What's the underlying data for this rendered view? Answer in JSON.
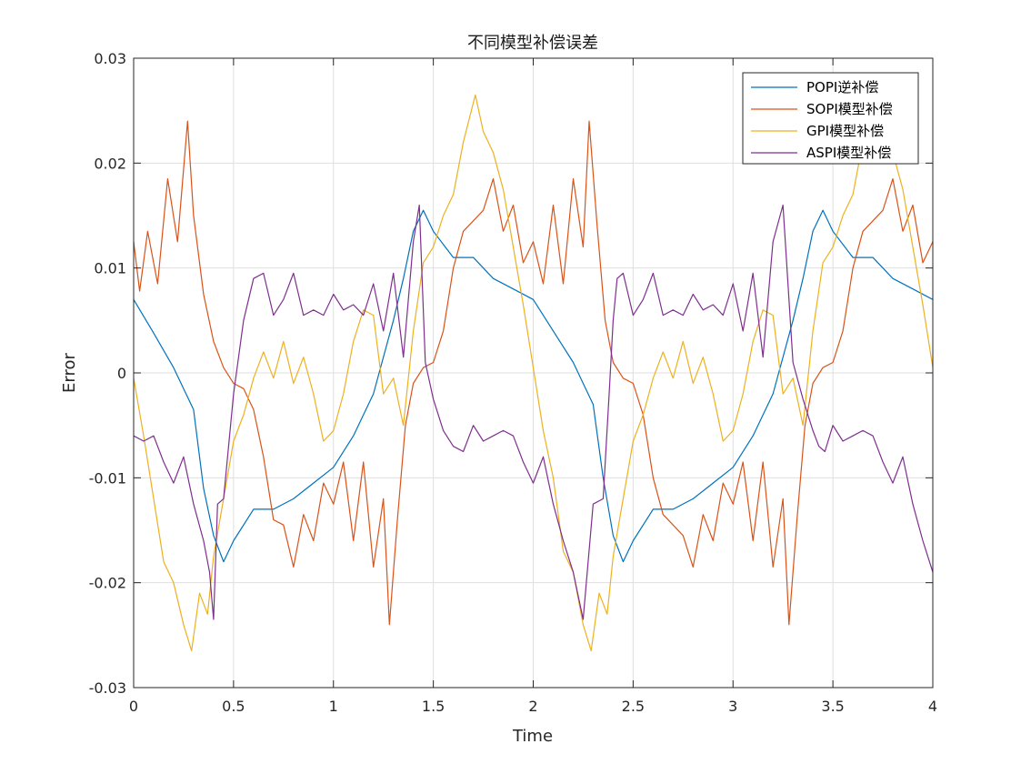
{
  "chart_data": {
    "type": "line",
    "title": "不同模型补偿误差",
    "xlabel": "Time",
    "ylabel": "Error",
    "xlim": [
      0,
      4
    ],
    "ylim": [
      -0.03,
      0.03
    ],
    "xticks": [
      0,
      0.5,
      1,
      1.5,
      2,
      2.5,
      3,
      3.5,
      4
    ],
    "xtick_labels": [
      "0",
      "0.5",
      "1",
      "1.5",
      "2",
      "2.5",
      "3",
      "3.5",
      "4"
    ],
    "yticks": [
      -0.03,
      -0.02,
      -0.01,
      0,
      0.01,
      0.02,
      0.03
    ],
    "ytick_labels": [
      "-0.03",
      "-0.02",
      "-0.01",
      "0",
      "0.01",
      "0.02",
      "0.03"
    ],
    "grid": true,
    "legend_position": "top-right",
    "series": [
      {
        "name": "POPI逆补偿",
        "color": "#0072BD",
        "x": [
          0,
          0.1,
          0.2,
          0.3,
          0.35,
          0.4,
          0.45,
          0.5,
          0.6,
          0.7,
          0.8,
          0.9,
          1.0,
          1.1,
          1.2,
          1.3,
          1.35,
          1.4,
          1.45,
          1.5,
          1.6,
          1.7,
          1.8,
          1.9,
          2.0,
          2.1,
          2.2,
          2.3,
          2.35,
          2.4,
          2.45,
          2.5,
          2.6,
          2.7,
          2.8,
          2.9,
          3.0,
          3.1,
          3.2,
          3.3,
          3.35,
          3.4,
          3.45,
          3.5,
          3.6,
          3.7,
          3.8,
          3.9,
          4.0
        ],
        "y": [
          0.007,
          0.0038,
          0.0005,
          -0.0035,
          -0.011,
          -0.0155,
          -0.018,
          -0.016,
          -0.013,
          -0.013,
          -0.012,
          -0.0105,
          -0.009,
          -0.006,
          -0.002,
          0.005,
          0.009,
          0.0135,
          0.0155,
          0.0135,
          0.011,
          0.011,
          0.009,
          0.008,
          0.007,
          0.004,
          0.001,
          -0.003,
          -0.01,
          -0.0155,
          -0.018,
          -0.016,
          -0.013,
          -0.013,
          -0.012,
          -0.0105,
          -0.009,
          -0.006,
          -0.002,
          0.005,
          0.009,
          0.0135,
          0.0155,
          0.0135,
          0.011,
          0.011,
          0.009,
          0.008,
          0.007
        ]
      },
      {
        "name": "SOPI模型补偿",
        "color": "#D95319",
        "x": [
          0,
          0.03,
          0.07,
          0.12,
          0.17,
          0.22,
          0.27,
          0.3,
          0.35,
          0.4,
          0.45,
          0.5,
          0.55,
          0.6,
          0.65,
          0.7,
          0.75,
          0.8,
          0.85,
          0.9,
          0.95,
          1.0,
          1.05,
          1.1,
          1.15,
          1.2,
          1.25,
          1.28,
          1.32,
          1.36,
          1.4,
          1.45,
          1.5,
          1.55,
          1.6,
          1.65,
          1.7,
          1.75,
          1.8,
          1.85,
          1.9,
          1.95,
          2.0,
          2.05,
          2.1,
          2.15,
          2.2,
          2.25,
          2.28,
          2.32,
          2.36,
          2.4,
          2.45,
          2.5,
          2.55,
          2.6,
          2.65,
          2.7,
          2.75,
          2.8,
          2.85,
          2.9,
          2.95,
          3.0,
          3.05,
          3.1,
          3.15,
          3.2,
          3.25,
          3.28,
          3.32,
          3.36,
          3.4,
          3.45,
          3.5,
          3.55,
          3.6,
          3.65,
          3.7,
          3.75,
          3.8,
          3.85,
          3.9,
          3.95,
          4.0
        ],
        "y": [
          0.0125,
          0.0078,
          0.0135,
          0.0085,
          0.0185,
          0.0125,
          0.024,
          0.015,
          0.0075,
          0.003,
          0.0005,
          -0.001,
          -0.0015,
          -0.0035,
          -0.008,
          -0.014,
          -0.0145,
          -0.0185,
          -0.0135,
          -0.016,
          -0.0105,
          -0.0125,
          -0.0085,
          -0.016,
          -0.0085,
          -0.0185,
          -0.012,
          -0.024,
          -0.014,
          -0.005,
          -0.001,
          0.0005,
          0.001,
          0.004,
          0.01,
          0.0135,
          0.0145,
          0.0155,
          0.0185,
          0.0135,
          0.016,
          0.0105,
          0.0125,
          0.0085,
          0.016,
          0.0085,
          0.0185,
          0.012,
          0.024,
          0.014,
          0.005,
          0.001,
          -0.0005,
          -0.001,
          -0.004,
          -0.01,
          -0.0135,
          -0.0145,
          -0.0155,
          -0.0185,
          -0.0135,
          -0.016,
          -0.0105,
          -0.0125,
          -0.0085,
          -0.016,
          -0.0085,
          -0.0185,
          -0.012,
          -0.024,
          -0.014,
          -0.005,
          -0.001,
          0.0005,
          0.001,
          0.004,
          0.01,
          0.0135,
          0.0145,
          0.0155,
          0.0185,
          0.0135,
          0.016,
          0.0105,
          0.0125
        ]
      },
      {
        "name": "GPI模型补偿",
        "color": "#EDB120",
        "x": [
          0,
          0.05,
          0.1,
          0.15,
          0.2,
          0.25,
          0.29,
          0.33,
          0.37,
          0.4,
          0.45,
          0.5,
          0.55,
          0.6,
          0.65,
          0.7,
          0.75,
          0.8,
          0.85,
          0.9,
          0.95,
          1.0,
          1.05,
          1.1,
          1.15,
          1.2,
          1.25,
          1.3,
          1.35,
          1.4,
          1.45,
          1.5,
          1.55,
          1.6,
          1.65,
          1.71,
          1.75,
          1.8,
          1.85,
          1.9,
          1.95,
          2.0,
          2.05,
          2.1,
          2.15,
          2.2,
          2.25,
          2.29,
          2.33,
          2.37,
          2.4,
          2.45,
          2.5,
          2.55,
          2.6,
          2.65,
          2.7,
          2.75,
          2.8,
          2.85,
          2.9,
          2.95,
          3.0,
          3.05,
          3.1,
          3.15,
          3.2,
          3.25,
          3.3,
          3.35,
          3.4,
          3.45,
          3.5,
          3.55,
          3.6,
          3.65,
          3.7,
          3.75,
          3.8,
          3.85,
          3.9,
          3.95,
          4.0
        ],
        "y": [
          -0.0005,
          -0.006,
          -0.012,
          -0.018,
          -0.02,
          -0.024,
          -0.0265,
          -0.021,
          -0.023,
          -0.0175,
          -0.012,
          -0.0065,
          -0.004,
          -0.0005,
          0.002,
          -0.0005,
          0.003,
          -0.001,
          0.0015,
          -0.002,
          -0.0065,
          -0.0055,
          -0.002,
          0.003,
          0.006,
          0.0055,
          -0.002,
          -0.0005,
          -0.005,
          0.004,
          0.0105,
          0.012,
          0.015,
          0.017,
          0.022,
          0.0265,
          0.023,
          0.021,
          0.0175,
          0.012,
          0.0065,
          0.0005,
          -0.0055,
          -0.01,
          -0.017,
          -0.019,
          -0.024,
          -0.0265,
          -0.021,
          -0.023,
          -0.0175,
          -0.012,
          -0.0065,
          -0.004,
          -0.0005,
          0.002,
          -0.0005,
          0.003,
          -0.001,
          0.0015,
          -0.002,
          -0.0065,
          -0.0055,
          -0.002,
          0.003,
          0.006,
          0.0055,
          -0.002,
          -0.0005,
          -0.005,
          0.004,
          0.0105,
          0.012,
          0.015,
          0.017,
          0.022,
          0.0265,
          0.023,
          0.021,
          0.0175,
          0.012,
          0.0065,
          0.0005
        ]
      },
      {
        "name": "ASPI模型补偿",
        "color": "#7E2F8E",
        "x": [
          0,
          0.05,
          0.1,
          0.15,
          0.2,
          0.25,
          0.3,
          0.35,
          0.38,
          0.4,
          0.42,
          0.45,
          0.5,
          0.55,
          0.6,
          0.65,
          0.7,
          0.75,
          0.8,
          0.85,
          0.9,
          0.95,
          1.0,
          1.05,
          1.1,
          1.15,
          1.2,
          1.25,
          1.3,
          1.35,
          1.4,
          1.43,
          1.46,
          1.5,
          1.55,
          1.6,
          1.65,
          1.7,
          1.75,
          1.8,
          1.85,
          1.9,
          1.95,
          2.0,
          2.05,
          2.1,
          2.15,
          2.2,
          2.25,
          2.3,
          2.35,
          2.38,
          2.4,
          2.42,
          2.45,
          2.5,
          2.55,
          2.6,
          2.65,
          2.7,
          2.75,
          2.8,
          2.85,
          2.9,
          2.95,
          3.0,
          3.05,
          3.1,
          3.15,
          3.2,
          3.25,
          3.3,
          3.35,
          3.4,
          3.43,
          3.46,
          3.5,
          3.55,
          3.6,
          3.65,
          3.7,
          3.75,
          3.8,
          3.85,
          3.9,
          3.95,
          4.0
        ],
        "y": [
          -0.006,
          -0.0065,
          -0.006,
          -0.0085,
          -0.0105,
          -0.008,
          -0.0125,
          -0.016,
          -0.019,
          -0.0235,
          -0.0125,
          -0.012,
          -0.002,
          0.005,
          0.009,
          0.0095,
          0.0055,
          0.007,
          0.0095,
          0.0055,
          0.006,
          0.0055,
          0.0075,
          0.006,
          0.0065,
          0.0055,
          0.0085,
          0.004,
          0.0095,
          0.0015,
          0.0125,
          0.016,
          0.001,
          -0.0025,
          -0.0055,
          -0.007,
          -0.0075,
          -0.005,
          -0.0065,
          -0.006,
          -0.0055,
          -0.006,
          -0.0085,
          -0.0105,
          -0.008,
          -0.0125,
          -0.016,
          -0.019,
          -0.0235,
          -0.0125,
          -0.012,
          -0.002,
          0.005,
          0.009,
          0.0095,
          0.0055,
          0.007,
          0.0095,
          0.0055,
          0.006,
          0.0055,
          0.0075,
          0.006,
          0.0065,
          0.0055,
          0.0085,
          0.004,
          0.0095,
          0.0015,
          0.0125,
          0.016,
          0.001,
          -0.0025,
          -0.0055,
          -0.007,
          -0.0075,
          -0.005,
          -0.0065,
          -0.006,
          -0.0055,
          -0.006,
          -0.0085,
          -0.0105,
          -0.008,
          -0.0125,
          -0.016,
          -0.019
        ]
      }
    ]
  }
}
